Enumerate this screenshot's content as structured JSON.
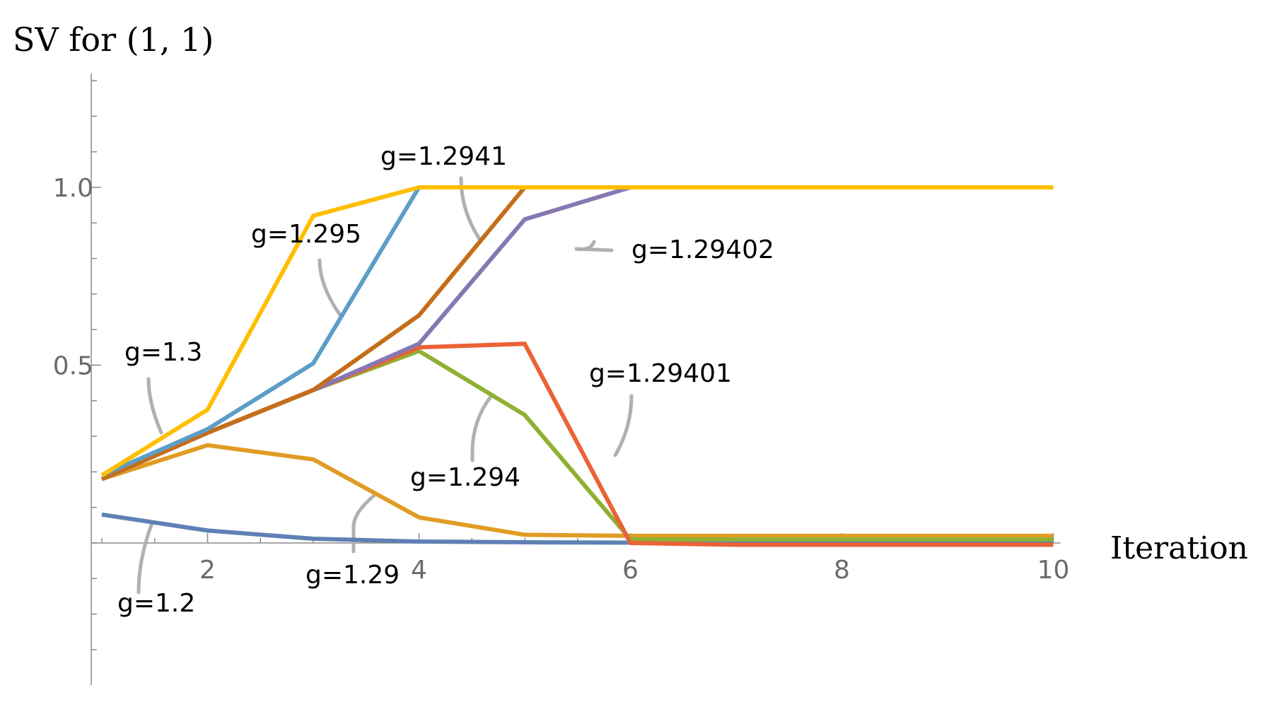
{
  "chart_data": {
    "type": "line",
    "ylabel": "SV for (1, 1)",
    "xlabel": "Iteration",
    "xlim": [
      0.9,
      10
    ],
    "ylim": [
      -0.4,
      1.32
    ],
    "x_ticks": [
      2,
      4,
      6,
      8,
      10
    ],
    "y_ticks": [
      0.5,
      1.0
    ],
    "y_tick_labels": [
      "0.5",
      "1.0"
    ],
    "x_tick_labels": [
      "2",
      "4",
      "6",
      "8",
      "10"
    ],
    "grid": false,
    "series": [
      {
        "name": "g=1.2",
        "color": "#5E81B5",
        "x": [
          1,
          2,
          3,
          4,
          5,
          6,
          7,
          8,
          9,
          10
        ],
        "values": [
          0.08,
          0.035,
          0.012,
          0.004,
          0.002,
          0.001,
          0.001,
          0.001,
          0.001,
          0.001
        ]
      },
      {
        "name": "g=1.29",
        "color": "#E19C24",
        "x": [
          1,
          2,
          3,
          4,
          5,
          6,
          7,
          8,
          9,
          10
        ],
        "values": [
          0.18,
          0.275,
          0.235,
          0.072,
          0.023,
          0.02,
          0.02,
          0.02,
          0.02,
          0.02
        ]
      },
      {
        "name": "g=1.294",
        "color": "#8FB032",
        "x": [
          1,
          2,
          3,
          4,
          5,
          6,
          7,
          8,
          9,
          10
        ],
        "values": [
          0.18,
          0.31,
          0.43,
          0.54,
          0.36,
          0.01,
          0.01,
          0.01,
          0.01,
          0.01
        ]
      },
      {
        "name": "g=1.29401",
        "color": "#EB6235",
        "x": [
          1,
          2,
          3,
          4,
          5,
          6,
          7,
          8,
          9,
          10
        ],
        "values": [
          0.18,
          0.31,
          0.43,
          0.55,
          0.56,
          0.0,
          -0.005,
          -0.005,
          -0.005,
          -0.005
        ]
      },
      {
        "name": "g=1.29402",
        "color": "#8778B3",
        "x": [
          1,
          2,
          3,
          4,
          5,
          6,
          7,
          8,
          9,
          10
        ],
        "values": [
          0.18,
          0.31,
          0.43,
          0.56,
          0.91,
          1.0,
          1.0,
          1.0,
          1.0,
          1.0
        ]
      },
      {
        "name": "g=1.2941",
        "color": "#C56E1A",
        "x": [
          1,
          2,
          3,
          4,
          5,
          6,
          7,
          8,
          9,
          10
        ],
        "values": [
          0.18,
          0.31,
          0.43,
          0.64,
          1.0,
          1.0,
          1.0,
          1.0,
          1.0,
          1.0
        ]
      },
      {
        "name": "g=1.295",
        "color": "#5D9EC7",
        "x": [
          1,
          2,
          3,
          4,
          5,
          6,
          7,
          8,
          9,
          10
        ],
        "values": [
          0.19,
          0.32,
          0.505,
          1.0,
          1.0,
          1.0,
          1.0,
          1.0,
          1.0,
          1.0
        ]
      },
      {
        "name": "g=1.3",
        "color": "#FFBF00",
        "x": [
          1,
          2,
          3,
          4,
          5,
          6,
          7,
          8,
          9,
          10
        ],
        "values": [
          0.19,
          0.375,
          0.92,
          1.0,
          1.0,
          1.0,
          1.0,
          1.0,
          1.0,
          1.0
        ]
      }
    ],
    "annotations": [
      {
        "text": "g=1.3"
      },
      {
        "text": "g=1.295"
      },
      {
        "text": "g=1.2941"
      },
      {
        "text": "g=1.29402"
      },
      {
        "text": "g=1.29401"
      },
      {
        "text": "g=1.294"
      },
      {
        "text": "g=1.29"
      },
      {
        "text": "g=1.2"
      }
    ]
  }
}
